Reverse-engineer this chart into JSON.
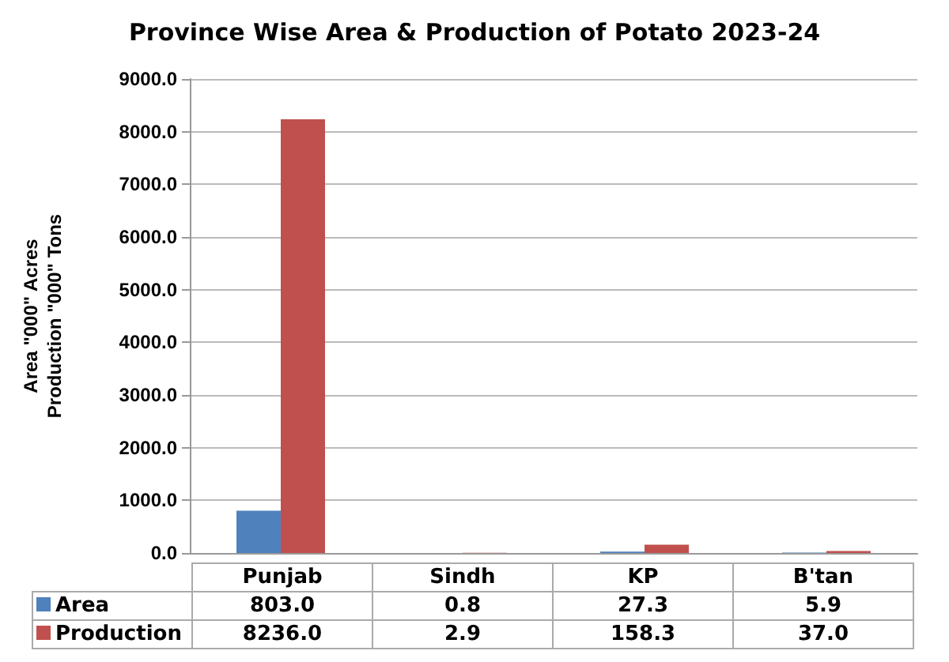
{
  "chart_data": {
    "type": "bar",
    "title": "Province Wise Area & Production of Potato 2023-24",
    "ylabel": "Area \"000\" Acres\nProduction \"000\" Tons",
    "categories": [
      "Punjab",
      "Sindh",
      "KP",
      "B'tan"
    ],
    "series": [
      {
        "name": "Area",
        "color": "#4f81bd",
        "values": [
          803.0,
          0.8,
          27.3,
          5.9
        ],
        "value_labels": [
          "803.0",
          "0.8",
          "27.3",
          "5.9"
        ]
      },
      {
        "name": "Production",
        "color": "#c0504d",
        "values": [
          8236.0,
          2.9,
          158.3,
          37.0
        ],
        "value_labels": [
          "8236.0",
          "2.9",
          "158.3",
          "37.0"
        ]
      }
    ],
    "ylim": [
      0,
      9000
    ],
    "yticks": [
      {
        "value": 0,
        "label": "0.0"
      },
      {
        "value": 1000,
        "label": "1000.0"
      },
      {
        "value": 2000,
        "label": "2000.0"
      },
      {
        "value": 3000,
        "label": "3000.0"
      },
      {
        "value": 4000,
        "label": "4000.0"
      },
      {
        "value": 5000,
        "label": "5000.0"
      },
      {
        "value": 6000,
        "label": "6000.0"
      },
      {
        "value": 7000,
        "label": "7000.0"
      },
      {
        "value": 8000,
        "label": "8000.0"
      },
      {
        "value": 9000,
        "label": "9000.0"
      }
    ],
    "grid": "y",
    "legend": "bottom"
  }
}
